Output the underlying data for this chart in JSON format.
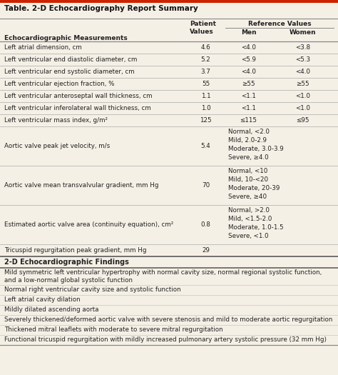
{
  "title": "Table. 2-D Echocardiography Report Summary",
  "bg_color": "#f5f0e6",
  "top_bar_color": "#cc2200",
  "text_color": "#222222",
  "bold_color": "#111111",
  "line_color_heavy": "#888888",
  "line_color_light": "#aaaaaa",
  "header_col1": "Echocardiographic Measurements",
  "header_col2": "Patient\nValues",
  "header_ref": "Reference Values",
  "header_men": "Men",
  "header_women": "Women",
  "rows": [
    {
      "label": "Left atrial dimension, cm",
      "value": "4.6",
      "men": "<4.0",
      "women": "<3.8",
      "ref_multiline": ""
    },
    {
      "label": "Left ventricular end diastolic diameter, cm",
      "value": "5.2",
      "men": "<5.9",
      "women": "<5.3",
      "ref_multiline": ""
    },
    {
      "label": "Left ventricular end systolic diameter, cm",
      "value": "3.7",
      "men": "<4.0",
      "women": "<4.0",
      "ref_multiline": ""
    },
    {
      "label": "Left ventricular ejection fraction, %",
      "value": "55",
      "men": "≥55",
      "women": "≥55",
      "ref_multiline": ""
    },
    {
      "label": "Left ventricular anteroseptal wall thickness, cm",
      "value": "1.1",
      "men": "<1.1",
      "women": "<1.0",
      "ref_multiline": ""
    },
    {
      "label": "Left ventricular inferolateral wall thickness, cm",
      "value": "1.0",
      "men": "<1.1",
      "women": "<1.0",
      "ref_multiline": ""
    },
    {
      "label": "Left ventricular mass index, g/m²",
      "value": "125",
      "men": "≤115",
      "women": "≤95",
      "ref_multiline": ""
    },
    {
      "label": "Aortic valve peak jet velocity, m/s",
      "value": "5.4",
      "men": "",
      "women": "",
      "ref_multiline": "Normal, <2.0\nMild, 2.0-2.9\nModerate, 3.0-3.9\nSevere, ≥4.0"
    },
    {
      "label": "Aortic valve mean transvalvular gradient, mm Hg",
      "value": "70",
      "men": "",
      "women": "",
      "ref_multiline": "Normal, <10\nMild, 10-<20\nModerate, 20-39\nSevere, ≥40"
    },
    {
      "label": "Estimated aortic valve area (continuity equation), cm²",
      "value": "0.8",
      "men": "",
      "women": "",
      "ref_multiline": "Normal, >2.0\nMild, <1.5-2.0\nModerate, 1.0-1.5\nSevere, <1.0"
    },
    {
      "label": "Tricuspid regurgitation peak gradient, mm Hg",
      "value": "29",
      "men": "",
      "women": "",
      "ref_multiline": ""
    }
  ],
  "findings_title": "2-D Echocardiographic Findings",
  "findings": [
    "Mild symmetric left ventricular hypertrophy with normal cavity size, normal regional systolic function,\nand a low-normal global systolic function",
    "Normal right ventricular cavity size and systolic function",
    "Left atrial cavity dilation",
    "Mildly dilated ascending aorta",
    "Severely thickened/deformed aortic valve with severe stenosis and mild to moderate aortic regurgitation",
    "Thickened mitral leaflets with moderate to severe mitral regurgitation",
    "Functional tricuspid regurgitation with mildly increased pulmonary artery systolic pressure (32 mm Hg)"
  ]
}
